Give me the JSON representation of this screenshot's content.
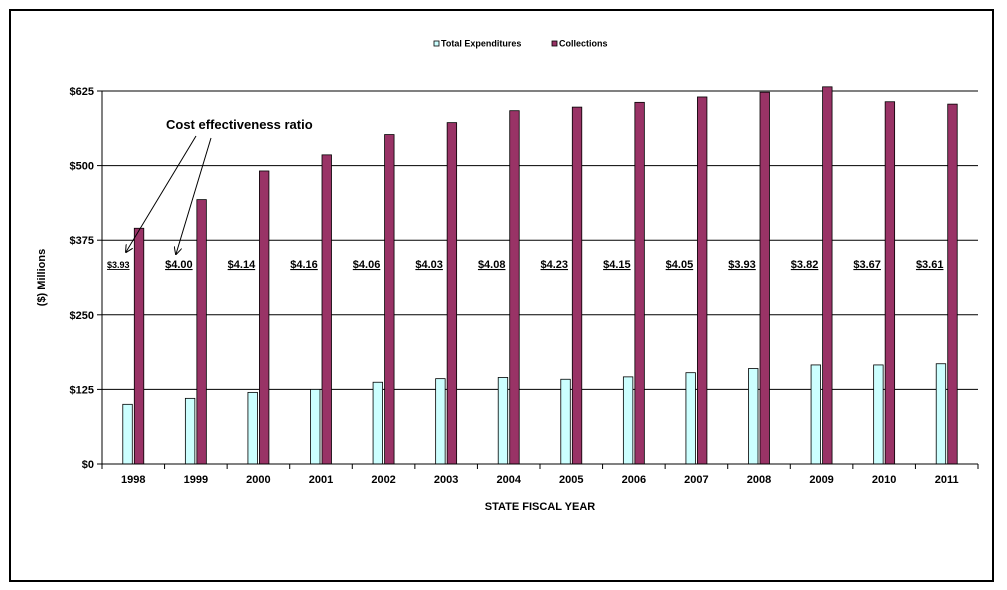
{
  "chart_data": {
    "type": "bar",
    "title": "",
    "xlabel": "STATE FISCAL YEAR",
    "ylabel": "($) Millions",
    "categories": [
      "1998",
      "1999",
      "2000",
      "2001",
      "2002",
      "2003",
      "2004",
      "2005",
      "2006",
      "2007",
      "2008",
      "2009",
      "2010",
      "2011"
    ],
    "series": [
      {
        "name": "Total Expenditures",
        "color": "#ccffff",
        "values": [
          100,
          110,
          120,
          125,
          137,
          143,
          145,
          142,
          146,
          153,
          160,
          166,
          166,
          168
        ]
      },
      {
        "name": "Collections",
        "color": "#993366",
        "values": [
          395,
          443,
          491,
          518,
          552,
          572,
          592,
          598,
          606,
          615,
          623,
          632,
          607,
          603
        ]
      }
    ],
    "ylim": [
      0,
      625
    ],
    "yticks": [
      0,
      125,
      250,
      375,
      500,
      625
    ],
    "ytick_labels": [
      "$0",
      "$125",
      "$250",
      "$375",
      "$500",
      "$625"
    ],
    "grid": true,
    "legend_position": "top-center",
    "data_labels": [
      "$3.93",
      "$4.00",
      "$4.14",
      "$4.16",
      "$4.06",
      "$4.03",
      "$4.08",
      "$4.23",
      "$4.15",
      "$4.05",
      "$3.93",
      "$3.82",
      "$3.67",
      "$3.61"
    ],
    "annotations": [
      {
        "text": "Cost effectiveness ratio",
        "points_to": [
          "1998",
          "1999"
        ]
      }
    ]
  }
}
